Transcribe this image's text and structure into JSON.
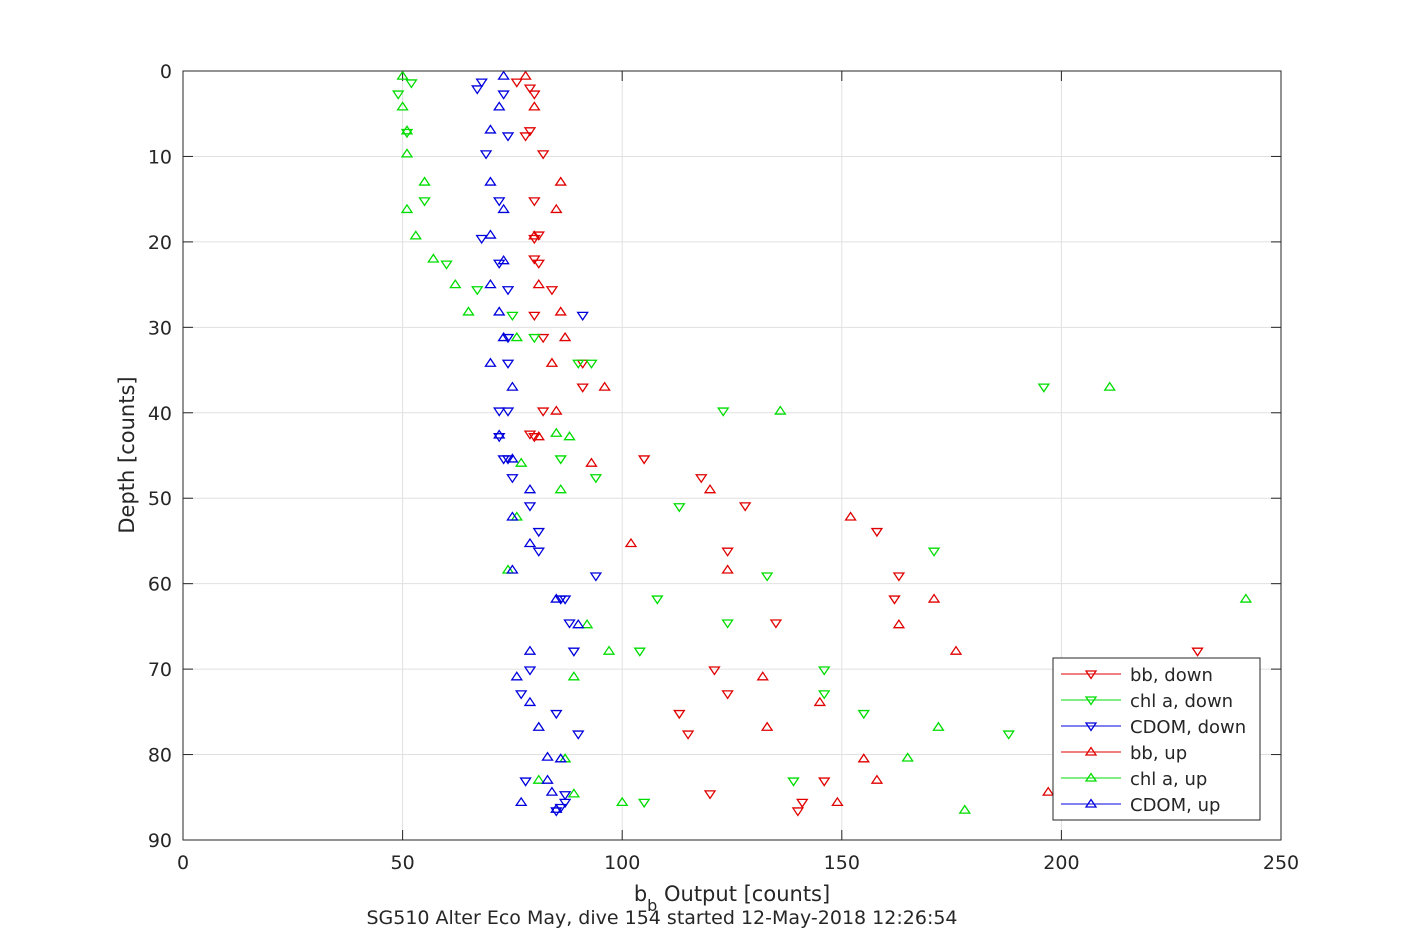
{
  "chart_data": {
    "type": "scatter",
    "title": "",
    "xlabel": {
      "main": "b",
      "sub": "b",
      "rest": " Output [counts]"
    },
    "ylabel": "Depth [counts]",
    "caption": "SG510 Alter Eco May, dive 154 started 12-May-2018 12:26:54",
    "xlim": [
      0,
      250
    ],
    "ylim": [
      0,
      90
    ],
    "y_reversed": true,
    "grid": true,
    "legend_placement": "bottom-right",
    "xticks": [
      "0",
      "50",
      "100",
      "150",
      "200",
      "250"
    ],
    "yticks": [
      "0",
      "10",
      "20",
      "30",
      "40",
      "50",
      "60",
      "70",
      "80",
      "90"
    ],
    "series": [
      {
        "name": "bb, down",
        "color": "#e00000",
        "marker": "triangle-down",
        "points": [
          [
            76,
            1.3
          ],
          [
            79,
            2
          ],
          [
            80,
            2.7
          ],
          [
            79,
            7
          ],
          [
            78,
            7.6
          ],
          [
            82,
            9.7
          ],
          [
            80,
            15.2
          ],
          [
            81,
            19.2
          ],
          [
            80,
            19.6
          ],
          [
            80,
            22
          ],
          [
            81,
            22.5
          ],
          [
            84,
            25.6
          ],
          [
            80,
            28.6
          ],
          [
            82,
            31.2
          ],
          [
            91,
            34.2
          ],
          [
            91,
            37
          ],
          [
            82,
            39.8
          ],
          [
            80,
            42.8
          ],
          [
            79,
            42.5
          ],
          [
            105,
            45.4
          ],
          [
            118,
            47.6
          ],
          [
            128,
            50.9
          ],
          [
            158,
            53.9
          ],
          [
            124,
            56.2
          ],
          [
            163,
            59.1
          ],
          [
            162,
            61.8
          ],
          [
            135,
            64.6
          ],
          [
            231,
            67.9
          ],
          [
            121,
            70.1
          ],
          [
            124,
            72.9
          ],
          [
            113,
            75.2
          ],
          [
            115,
            77.6
          ],
          [
            120,
            84.6
          ],
          [
            146,
            83.1
          ],
          [
            141,
            85.6
          ],
          [
            140,
            86.6
          ]
        ]
      },
      {
        "name": "chl a, down",
        "color": "#00dd00",
        "marker": "triangle-down",
        "points": [
          [
            52,
            1.4
          ],
          [
            49,
            2.7
          ],
          [
            51,
            7.2
          ],
          [
            55,
            15.2
          ],
          [
            60,
            22.6
          ],
          [
            67,
            25.6
          ],
          [
            75,
            28.6
          ],
          [
            80,
            31.2
          ],
          [
            90,
            34.2
          ],
          [
            93,
            34.2
          ],
          [
            196,
            37
          ],
          [
            123,
            39.8
          ],
          [
            86,
            45.4
          ],
          [
            94,
            47.6
          ],
          [
            113,
            51
          ],
          [
            171,
            56.2
          ],
          [
            133,
            59.1
          ],
          [
            108,
            61.8
          ],
          [
            124,
            64.6
          ],
          [
            104,
            67.9
          ],
          [
            146,
            70.1
          ],
          [
            146,
            72.9
          ],
          [
            155,
            75.2
          ],
          [
            188,
            77.6
          ],
          [
            139,
            83.1
          ],
          [
            105,
            85.6
          ]
        ]
      },
      {
        "name": "CDOM, down",
        "color": "#0000dd",
        "marker": "triangle-down",
        "points": [
          [
            68,
            1.3
          ],
          [
            67,
            2.1
          ],
          [
            73,
            2.7
          ],
          [
            74,
            7.6
          ],
          [
            69,
            9.7
          ],
          [
            72,
            15.2
          ],
          [
            68,
            19.6
          ],
          [
            72,
            22.5
          ],
          [
            74,
            25.6
          ],
          [
            91,
            28.6
          ],
          [
            74,
            31.2
          ],
          [
            74,
            34.2
          ],
          [
            72,
            39.8
          ],
          [
            74,
            39.8
          ],
          [
            72,
            42.8
          ],
          [
            73,
            45.4
          ],
          [
            74,
            45.4
          ],
          [
            75,
            47.6
          ],
          [
            79,
            50.9
          ],
          [
            81,
            53.9
          ],
          [
            81,
            56.2
          ],
          [
            94,
            59.1
          ],
          [
            86,
            61.8
          ],
          [
            87,
            61.8
          ],
          [
            88,
            64.6
          ],
          [
            89,
            67.9
          ],
          [
            79,
            70.1
          ],
          [
            77,
            72.9
          ],
          [
            85,
            75.2
          ],
          [
            90,
            77.6
          ],
          [
            78,
            83.1
          ],
          [
            87,
            84.7
          ],
          [
            87,
            85.6
          ],
          [
            86,
            86.2
          ],
          [
            85,
            86.6
          ]
        ]
      },
      {
        "name": "bb, up",
        "color": "#e00000",
        "marker": "triangle-up",
        "points": [
          [
            78,
            0.6
          ],
          [
            80,
            4.2
          ],
          [
            86,
            13
          ],
          [
            85,
            16.2
          ],
          [
            80,
            19.3
          ],
          [
            81,
            25
          ],
          [
            86,
            28.2
          ],
          [
            87,
            31.2
          ],
          [
            84,
            34.2
          ],
          [
            96,
            37
          ],
          [
            85,
            39.8
          ],
          [
            81,
            42.8
          ],
          [
            93,
            45.9
          ],
          [
            120,
            49
          ],
          [
            152,
            52.2
          ],
          [
            102,
            55.3
          ],
          [
            124,
            58.4
          ],
          [
            171,
            61.8
          ],
          [
            163,
            64.8
          ],
          [
            176,
            67.9
          ],
          [
            132,
            70.9
          ],
          [
            145,
            73.9
          ],
          [
            133,
            76.8
          ],
          [
            155,
            80.5
          ],
          [
            158,
            83
          ],
          [
            197,
            84.4
          ],
          [
            149,
            85.6
          ]
        ]
      },
      {
        "name": "chl a, up",
        "color": "#00dd00",
        "marker": "triangle-up",
        "points": [
          [
            50,
            0.6
          ],
          [
            50,
            4.2
          ],
          [
            51,
            7
          ],
          [
            51,
            9.7
          ],
          [
            55,
            13
          ],
          [
            51,
            16.2
          ],
          [
            53,
            19.3
          ],
          [
            57,
            22
          ],
          [
            62,
            25
          ],
          [
            65,
            28.2
          ],
          [
            76,
            31.2
          ],
          [
            211,
            37
          ],
          [
            136,
            39.8
          ],
          [
            85,
            42.4
          ],
          [
            88,
            42.8
          ],
          [
            77,
            45.9
          ],
          [
            86,
            49
          ],
          [
            76,
            52.2
          ],
          [
            74,
            58.4
          ],
          [
            242,
            61.8
          ],
          [
            92,
            64.8
          ],
          [
            97,
            67.9
          ],
          [
            89,
            70.9
          ],
          [
            172,
            76.8
          ],
          [
            165,
            80.4
          ],
          [
            87,
            80.5
          ],
          [
            81,
            83
          ],
          [
            89,
            84.6
          ],
          [
            100,
            85.6
          ],
          [
            178,
            86.5
          ]
        ]
      },
      {
        "name": "CDOM, up",
        "color": "#0000dd",
        "marker": "triangle-up",
        "points": [
          [
            73,
            0.6
          ],
          [
            72,
            4.2
          ],
          [
            70,
            6.9
          ],
          [
            70,
            13
          ],
          [
            73,
            16.2
          ],
          [
            70,
            19.2
          ],
          [
            73,
            22.2
          ],
          [
            70,
            25
          ],
          [
            72,
            28.2
          ],
          [
            73,
            31.2
          ],
          [
            70,
            34.2
          ],
          [
            75,
            37
          ],
          [
            72,
            42.6
          ],
          [
            75,
            45.4
          ],
          [
            79,
            49
          ],
          [
            75,
            52.2
          ],
          [
            79,
            55.3
          ],
          [
            75,
            58.4
          ],
          [
            85,
            61.8
          ],
          [
            90,
            64.8
          ],
          [
            79,
            67.9
          ],
          [
            76,
            70.9
          ],
          [
            79,
            73.9
          ],
          [
            81,
            76.8
          ],
          [
            83,
            80.3
          ],
          [
            86,
            80.5
          ],
          [
            83,
            83
          ],
          [
            84,
            84.4
          ],
          [
            77,
            85.6
          ],
          [
            85,
            86.4
          ]
        ]
      }
    ]
  }
}
